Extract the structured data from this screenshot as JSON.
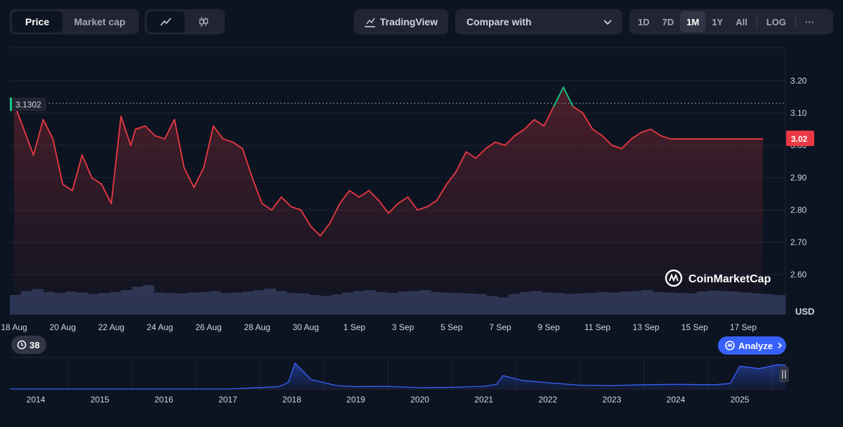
{
  "toolbar": {
    "metric_tabs": [
      "Price",
      "Market cap"
    ],
    "active_metric": "Price",
    "chart_types": [
      "line-chart-icon",
      "candlestick-icon"
    ],
    "tradingview_label": "TradingView",
    "compare_label": "Compare with",
    "ranges": [
      "1D",
      "7D",
      "1M",
      "1Y",
      "All"
    ],
    "active_range": "1M",
    "log_label": "LOG",
    "more_label": "···"
  },
  "colors": {
    "background": "#0d1421",
    "price_down": "#ea3943",
    "price_up": "#16c784",
    "volume": "#2a3553",
    "overview_line": "#3861fb",
    "accent": "#3861fb"
  },
  "watermark": "CoinMarketCap",
  "currency_label": "USD",
  "open_price_label": "3.1302",
  "current_price_label": "3.02",
  "events_count": "38",
  "analyze_label": "Analyze",
  "chart_data": [
    {
      "type": "line",
      "x_ticks": [
        "18 Aug",
        "20 Aug",
        "22 Aug",
        "24 Aug",
        "26 Aug",
        "28 Aug",
        "30 Aug",
        "1 Sep",
        "3 Sep",
        "5 Sep",
        "7 Sep",
        "9 Sep",
        "11 Sep",
        "13 Sep",
        "15 Sep",
        "17 Sep"
      ],
      "y_ticks": [
        "2.60",
        "2.70",
        "2.80",
        "2.90",
        "3.00",
        "3.10",
        "3.20"
      ],
      "ylim": [
        2.5,
        3.3
      ],
      "ylabel": "USD",
      "reference_line": 3.1302,
      "last_value": 3.02,
      "series": [
        {
          "x_day": [
            0,
            0.4,
            0.8,
            1.2,
            1.6,
            2,
            2.4,
            2.8,
            3.2,
            3.6,
            4,
            4.4,
            4.8,
            5,
            5.4,
            5.8,
            6.2,
            6.6,
            7,
            7.4,
            7.8,
            8.2,
            8.6,
            9,
            9.4,
            9.8,
            10.2,
            10.6,
            11,
            11.4,
            11.8,
            12.2,
            12.6,
            13,
            13.4,
            13.8,
            14.2,
            14.6,
            15,
            15.4,
            15.8,
            16.2,
            16.6,
            17,
            17.4,
            17.8,
            18.2,
            18.6,
            19,
            19.4,
            19.8,
            20.2,
            20.6,
            21,
            21.4,
            21.8,
            22.2,
            22.6,
            23,
            23.4,
            23.8,
            24.2,
            24.6,
            25,
            25.4,
            25.8,
            26.2,
            26.6,
            27,
            27.4,
            27.8,
            28.2,
            28.6,
            29,
            29.4,
            29.8,
            30,
            30.4,
            30.8
          ],
          "values": [
            3.13,
            3.05,
            2.97,
            3.08,
            3.02,
            2.88,
            2.86,
            2.97,
            2.9,
            2.88,
            2.82,
            3.09,
            3.0,
            3.05,
            3.06,
            3.03,
            3.02,
            3.08,
            2.93,
            2.87,
            2.93,
            3.06,
            3.02,
            3.01,
            2.99,
            2.9,
            2.82,
            2.8,
            2.84,
            2.81,
            2.8,
            2.75,
            2.72,
            2.76,
            2.82,
            2.86,
            2.84,
            2.86,
            2.83,
            2.79,
            2.82,
            2.84,
            2.8,
            2.81,
            2.83,
            2.88,
            2.92,
            2.98,
            2.96,
            2.99,
            3.01,
            3.0,
            3.03,
            3.05,
            3.08,
            3.06,
            3.12,
            3.18,
            3.12,
            3.1,
            3.05,
            3.03,
            3.0,
            2.99,
            3.02,
            3.04,
            3.05,
            3.03,
            3.02,
            3.02,
            3.02,
            3.02,
            3.02,
            3.02,
            3.02,
            3.02,
            3.02,
            3.02,
            3.02
          ]
        }
      ],
      "volume": [
        40,
        48,
        52,
        46,
        44,
        47,
        45,
        42,
        44,
        46,
        50,
        57,
        60,
        45,
        44,
        43,
        45,
        46,
        48,
        44,
        45,
        47,
        50,
        53,
        48,
        44,
        43,
        40,
        38,
        41,
        45,
        48,
        50,
        46,
        44,
        47,
        48,
        50,
        46,
        45,
        44,
        43,
        42,
        38,
        35,
        42,
        46,
        48,
        45,
        44,
        42,
        43,
        44,
        46,
        45,
        47,
        48,
        50,
        46,
        45,
        44,
        43,
        47,
        49,
        48,
        47,
        45,
        43,
        42,
        40
      ]
    },
    {
      "type": "area",
      "x_ticks": [
        "2014",
        "2015",
        "2016",
        "2017",
        "2018",
        "2019",
        "2020",
        "2021",
        "2022",
        "2023",
        "2024",
        "2025"
      ],
      "x_year": [
        2013.6,
        2014,
        2015,
        2016,
        2017,
        2017.8,
        2017.95,
        2018.05,
        2018.3,
        2018.7,
        2019,
        2019.5,
        2020,
        2020.5,
        2021,
        2021.2,
        2021.3,
        2021.6,
        2022,
        2022.5,
        2023,
        2023.5,
        2024,
        2024.6,
        2024.85,
        2025,
        2025.3,
        2025.6,
        2025.72
      ],
      "values": [
        0.005,
        0.006,
        0.006,
        0.006,
        0.01,
        0.3,
        0.9,
        3.3,
        1.2,
        0.45,
        0.3,
        0.35,
        0.18,
        0.22,
        0.35,
        0.6,
        1.7,
        1.1,
        0.8,
        0.5,
        0.45,
        0.55,
        0.6,
        0.55,
        0.7,
        2.9,
        2.6,
        3.1,
        3.02
      ]
    }
  ]
}
